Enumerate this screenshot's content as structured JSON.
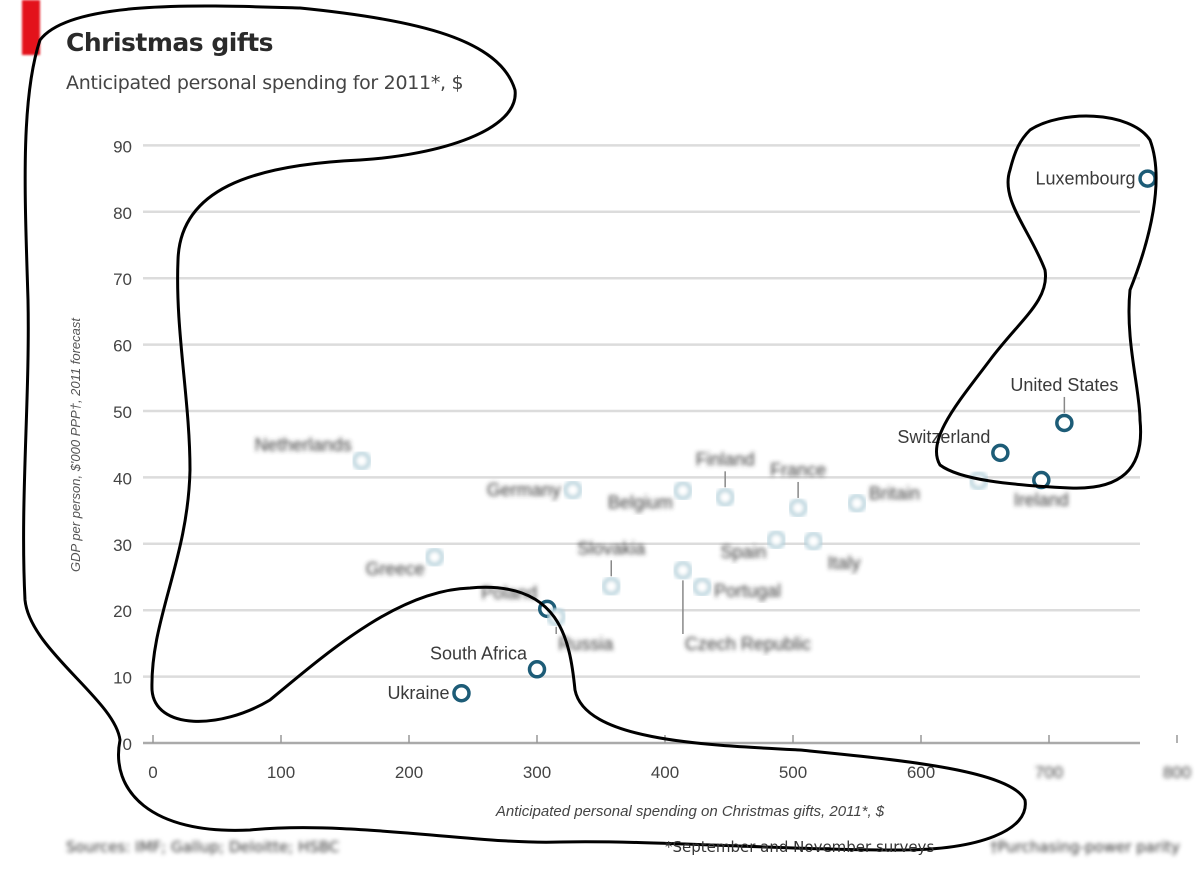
{
  "chart_data": {
    "type": "scatter",
    "title": "Christmas gifts",
    "subtitle": "Anticipated personal spending for 2011*, $",
    "xlabel": "Anticipated personal spending on Christmas gifts, 2011*, $",
    "ylabel": "GDP per person, $'000 PPP†, 2011 forecast",
    "xlim": [
      0,
      830
    ],
    "ylim": [
      0,
      90
    ],
    "xticks": [
      0,
      100,
      200,
      300,
      400,
      500,
      600,
      700,
      800
    ],
    "yticks": [
      0,
      10,
      20,
      30,
      40,
      50,
      60,
      70,
      80,
      90
    ],
    "grid": true,
    "highlight_color": "#1d5c77",
    "faded_color": "#a8cad6",
    "points": [
      {
        "label": "Luxembourg",
        "x": 777,
        "y": 85,
        "highlight": true,
        "anchor": "left"
      },
      {
        "label": "United States",
        "x": 712,
        "y": 48.2,
        "highlight": true,
        "anchor": "above"
      },
      {
        "label": "Switzerland",
        "x": 662,
        "y": 43.7,
        "highlight": true,
        "anchor": "left-up"
      },
      {
        "label": "Ireland",
        "x": 694,
        "y": 39.6,
        "highlight": true,
        "anchor": "below",
        "faded_label": true
      },
      {
        "label": "Poland",
        "x": 308,
        "y": 20.2,
        "highlight": true,
        "anchor": "left-up",
        "faded_label": true
      },
      {
        "label": "South Africa",
        "x": 300,
        "y": 11.1,
        "highlight": true,
        "anchor": "left-up"
      },
      {
        "label": "Ukraine",
        "x": 241,
        "y": 7.5,
        "highlight": true,
        "anchor": "left"
      },
      {
        "label": "Netherlands",
        "x": 163,
        "y": 42.5,
        "anchor": "left-up"
      },
      {
        "label": "Greece",
        "x": 220,
        "y": 28,
        "anchor": "left-down"
      },
      {
        "label": "Germany",
        "x": 328,
        "y": 38.1,
        "anchor": "left"
      },
      {
        "label": "Russia",
        "x": 315,
        "y": 19,
        "anchor": "below-right"
      },
      {
        "label": "Slovakia",
        "x": 358,
        "y": 23.6,
        "anchor": "above"
      },
      {
        "label": "Belgium",
        "x": 414,
        "y": 38,
        "anchor": "left-down"
      },
      {
        "label": "Czech Republic",
        "x": 414,
        "y": 26,
        "anchor": "below-right"
      },
      {
        "label": "Portugal",
        "x": 429,
        "y": 23.5,
        "anchor": "right"
      },
      {
        "label": "Finland",
        "x": 447,
        "y": 37,
        "anchor": "above"
      },
      {
        "label": "Spain",
        "x": 487,
        "y": 30.6,
        "anchor": "left-down"
      },
      {
        "label": "France",
        "x": 504,
        "y": 35.4,
        "anchor": "above"
      },
      {
        "label": "Italy",
        "x": 516,
        "y": 30.4,
        "anchor": "right-down"
      },
      {
        "label": "Britain",
        "x": 550,
        "y": 36.1,
        "anchor": "right-up"
      },
      {
        "label": "",
        "x": 645,
        "y": 39.5,
        "anchor": "none"
      }
    ],
    "footnote_source": "Sources: IMF; Gallup; Deloitte; HSBC",
    "footnote_star": "*September and November surveys",
    "footnote_dagger": "†Purchasing-power parity"
  }
}
